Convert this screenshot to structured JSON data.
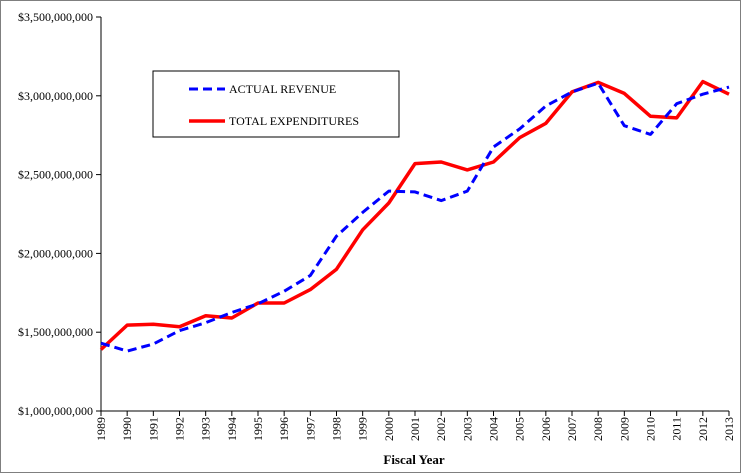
{
  "chart_data": {
    "type": "line",
    "title": "",
    "xlabel": "Fiscal Year",
    "ylabel": "",
    "x": [
      "1989",
      "1990",
      "1991",
      "1992",
      "1993",
      "1994",
      "1995",
      "1996",
      "1997",
      "1998",
      "1999",
      "2000",
      "2001",
      "2002",
      "2003",
      "2004",
      "2005",
      "2006",
      "2007",
      "2008",
      "2009",
      "2010",
      "2011",
      "2012",
      "2013"
    ],
    "ylim": [
      1000000000,
      3500000000
    ],
    "yticks": [
      1000000000,
      1500000000,
      2000000000,
      2500000000,
      3000000000,
      3500000000
    ],
    "ytick_labels": [
      "$1,000,000,000",
      "$1,500,000,000",
      "$2,000,000,000",
      "$2,500,000,000",
      "$3,000,000,000",
      "$3,500,000,000"
    ],
    "grid": false,
    "legend_position": "top-left",
    "series": [
      {
        "name": "ACTUAL REVENUE",
        "color": "#0000ff",
        "style": "dashed",
        "values": [
          1430000000,
          1380000000,
          1425000000,
          1510000000,
          1560000000,
          1625000000,
          1680000000,
          1760000000,
          1860000000,
          2110000000,
          2260000000,
          2395000000,
          2390000000,
          2335000000,
          2395000000,
          2675000000,
          2790000000,
          2935000000,
          3025000000,
          3080000000,
          2810000000,
          2755000000,
          2950000000,
          3010000000,
          3055000000
        ]
      },
      {
        "name": "TOTAL EXPENDITURES",
        "color": "#ff0000",
        "style": "solid",
        "values": [
          1390000000,
          1545000000,
          1550000000,
          1535000000,
          1605000000,
          1590000000,
          1685000000,
          1685000000,
          1770000000,
          1900000000,
          2150000000,
          2320000000,
          2570000000,
          2580000000,
          2530000000,
          2580000000,
          2735000000,
          2825000000,
          3025000000,
          3085000000,
          3015000000,
          2870000000,
          2860000000,
          3090000000,
          3010000000
        ]
      }
    ]
  }
}
